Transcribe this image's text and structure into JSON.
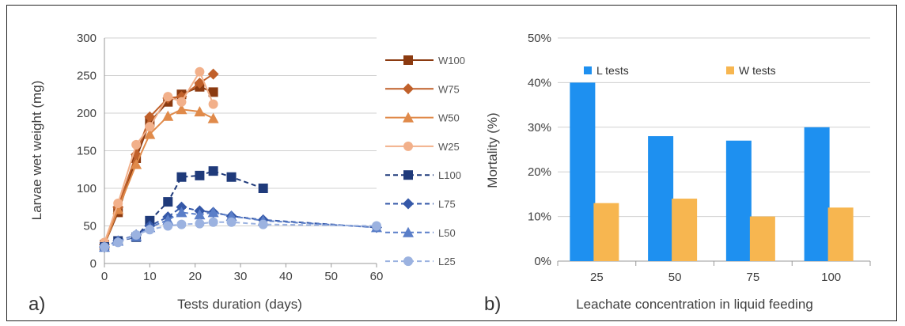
{
  "chart_data": [
    {
      "type": "line",
      "panel_label": "a)",
      "xlabel": "Tests duration (days)",
      "ylabel": "Larvae wet weight (mg)",
      "xlim": [
        0,
        60
      ],
      "ylim": [
        0,
        300
      ],
      "x_ticks": [
        0,
        10,
        20,
        30,
        40,
        50,
        60
      ],
      "y_ticks": [
        0,
        50,
        100,
        150,
        200,
        250,
        300
      ],
      "grid": true,
      "legend_placement": "right",
      "series": [
        {
          "name": "W100",
          "color": "#8B3A10",
          "marker": "square",
          "dashed": false,
          "x": [
            0,
            3,
            7,
            10,
            14,
            17,
            21,
            24
          ],
          "y": [
            25,
            68,
            140,
            188,
            215,
            225,
            235,
            228
          ]
        },
        {
          "name": "W75",
          "color": "#C0602A",
          "marker": "diamond",
          "dashed": false,
          "x": [
            0,
            3,
            7,
            10,
            14,
            17,
            21,
            24
          ],
          "y": [
            25,
            75,
            145,
            195,
            220,
            222,
            240,
            252
          ]
        },
        {
          "name": "W50",
          "color": "#E08A4A",
          "marker": "triangle",
          "dashed": false,
          "x": [
            0,
            3,
            7,
            10,
            14,
            17,
            21,
            24
          ],
          "y": [
            25,
            72,
            132,
            172,
            196,
            205,
            202,
            193
          ]
        },
        {
          "name": "W25",
          "color": "#F2B08A",
          "marker": "circle",
          "dashed": false,
          "x": [
            0,
            3,
            7,
            10,
            14,
            17,
            21,
            24
          ],
          "y": [
            28,
            80,
            158,
            182,
            222,
            215,
            255,
            212
          ]
        },
        {
          "name": "L100",
          "color": "#1F3A7A",
          "marker": "square",
          "dashed": true,
          "x": [
            0,
            3,
            7,
            10,
            14,
            17,
            21,
            24,
            28,
            35
          ],
          "y": [
            22,
            30,
            35,
            57,
            82,
            115,
            117,
            123,
            115,
            100
          ]
        },
        {
          "name": "L75",
          "color": "#3558A8",
          "marker": "diamond",
          "dashed": true,
          "x": [
            0,
            3,
            7,
            10,
            14,
            17,
            21,
            24,
            28,
            35,
            60
          ],
          "y": [
            22,
            30,
            38,
            50,
            62,
            75,
            70,
            68,
            63,
            58,
            48
          ]
        },
        {
          "name": "L50",
          "color": "#5A7EC8",
          "marker": "triangle",
          "dashed": true,
          "x": [
            0,
            3,
            7,
            10,
            14,
            17,
            21,
            24,
            28,
            35,
            60
          ],
          "y": [
            22,
            30,
            36,
            48,
            58,
            68,
            65,
            68,
            63,
            57,
            48
          ]
        },
        {
          "name": "L25",
          "color": "#9BB2E0",
          "marker": "circle",
          "dashed": true,
          "x": [
            0,
            3,
            7,
            10,
            14,
            17,
            21,
            24,
            28,
            35,
            60
          ],
          "y": [
            22,
            28,
            38,
            45,
            50,
            52,
            53,
            55,
            55,
            52,
            50
          ]
        }
      ]
    },
    {
      "type": "bar",
      "panel_label": "b)",
      "xlabel": "Leachate concentration in liquid feeding",
      "ylabel": "Mortality (%)",
      "categories": [
        "25",
        "50",
        "75",
        "100"
      ],
      "ylim": [
        0,
        0.5
      ],
      "y_ticks": [
        "0%",
        "10%",
        "20%",
        "30%",
        "40%",
        "50%"
      ],
      "grid": true,
      "legend_placement": "top",
      "series": [
        {
          "name": "L tests",
          "color": "#1E90F0",
          "values": [
            0.4,
            0.28,
            0.27,
            0.3
          ]
        },
        {
          "name": "W tests",
          "color": "#F7B650",
          "values": [
            0.13,
            0.14,
            0.1,
            0.12
          ]
        }
      ]
    }
  ]
}
